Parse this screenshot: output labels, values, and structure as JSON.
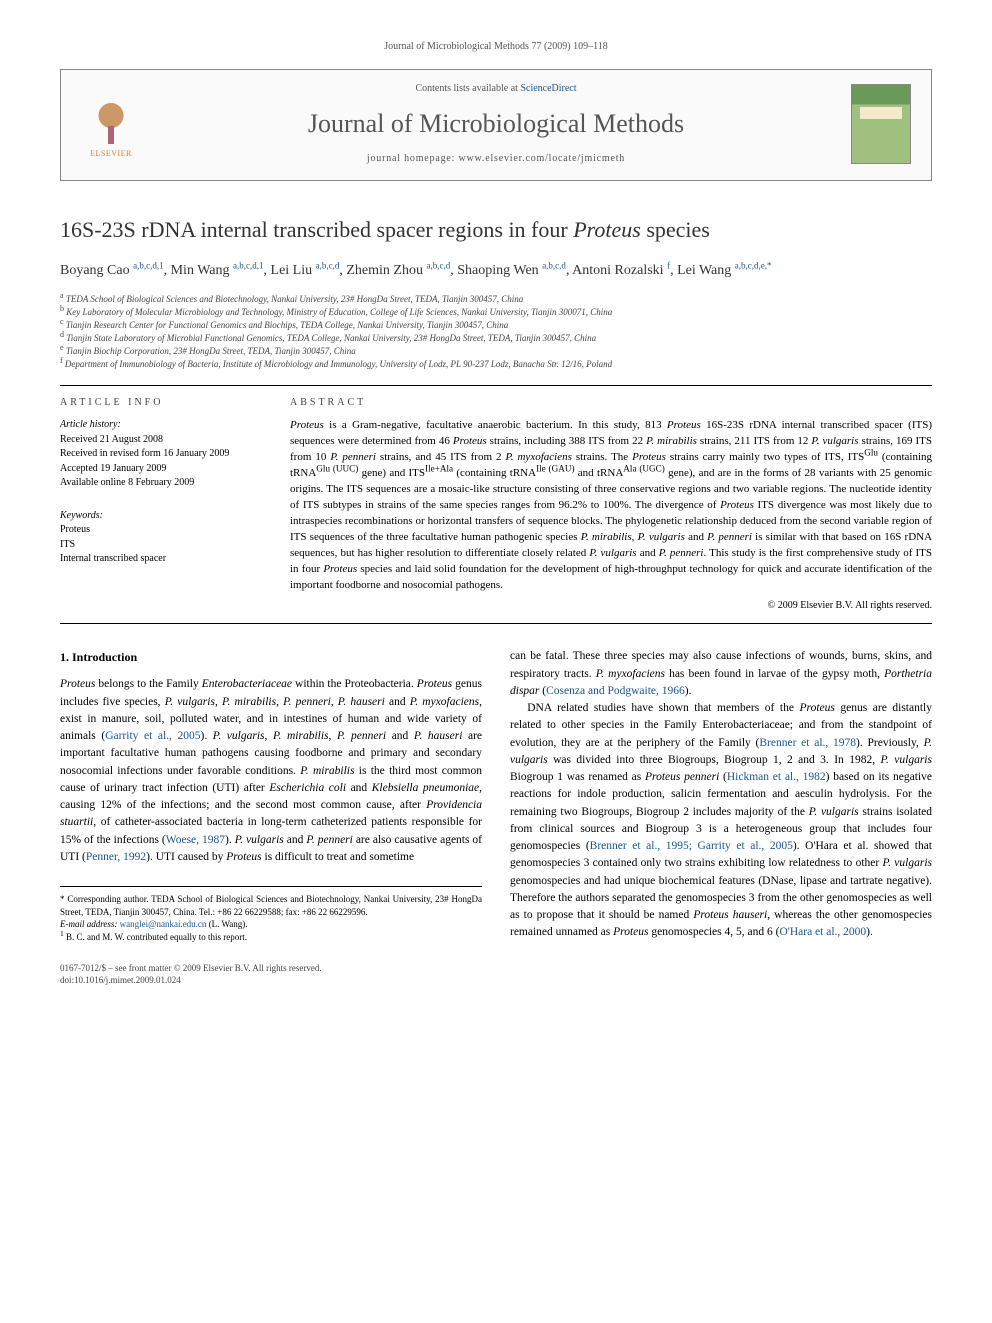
{
  "running_header": "Journal of Microbiological Methods 77 (2009) 109–118",
  "topbox": {
    "contents_prefix": "Contents lists available at ",
    "contents_link": "ScienceDirect",
    "journal_title": "Journal of Microbiological Methods",
    "homepage_prefix": "journal homepage: ",
    "homepage_url": "www.elsevier.com/locate/jmicmeth",
    "publisher_label": "ELSEVIER"
  },
  "article": {
    "title_plain_prefix": "16S-23S rDNA internal transcribed spacer regions in four ",
    "title_ital": "Proteus",
    "title_plain_suffix": " species",
    "authors_html": "Boyang Cao <sup>a,b,c,d,1</sup>, Min Wang <sup>a,b,c,d,1</sup>, Lei Liu <sup>a,b,c,d</sup>, Zhemin Zhou <sup>a,b,c,d</sup>, Shaoping Wen <sup>a,b,c,d</sup>, Antoni Rozalski <sup>f</sup>, Lei Wang <sup>a,b,c,d,e,*</sup>",
    "affiliations": [
      "TEDA School of Biological Sciences and Biotechnology, Nankai University, 23# HongDa Street, TEDA, Tianjin 300457, China",
      "Key Laboratory of Molecular Microbiology and Technology, Ministry of Education, College of Life Sciences, Nankai University, Tianjin 300071, China",
      "Tianjin Research Center for Functional Genomics and Biochips, TEDA College, Nankai University, Tianjin 300457, China",
      "Tianjin State Laboratory of Microbial Functional Genomics, TEDA College, Nankai University, 23# HongDa Street, TEDA, Tianjin 300457, China",
      "Tianjin Biochip Corporation, 23# HongDa Street, TEDA, Tianjin 300457, China",
      "Department of Immunobiology of Bacteria, Institute of Microbiology and Immunology, University of Lodz, PL 90-237 Lodz, Banacha Str. 12/16, Poland"
    ],
    "affiliation_markers": [
      "a",
      "b",
      "c",
      "d",
      "e",
      "f"
    ]
  },
  "article_info": {
    "heading": "ARTICLE INFO",
    "history_label": "Article history:",
    "history": [
      "Received 21 August 2008",
      "Received in revised form 16 January 2009",
      "Accepted 19 January 2009",
      "Available online 8 February 2009"
    ],
    "keywords_label": "Keywords:",
    "keywords": [
      "Proteus",
      "ITS",
      "Internal transcribed spacer"
    ]
  },
  "abstract": {
    "heading": "ABSTRACT",
    "text_html": "<span class=\"ital\">Proteus</span> is a Gram-negative, facultative anaerobic bacterium. In this study, 813 <span class=\"ital\">Proteus</span> 16S-23S rDNA internal transcribed spacer (ITS) sequences were determined from 46 <span class=\"ital\">Proteus</span> strains, including 388 ITS from 22 <span class=\"ital\">P. mirabilis</span> strains, 211 ITS from 12 <span class=\"ital\">P. vulgaris</span> strains, 169 ITS from 10 <span class=\"ital\">P. penneri</span> strains, and 45 ITS from 2 <span class=\"ital\">P. myxofaciens</span> strains. The <span class=\"ital\">Proteus</span> strains carry mainly two types of ITS, ITS<sup>Glu</sup> (containing tRNA<sup>Glu (UUC)</sup> gene) and ITS<sup>Ile+Ala</sup> (containing tRNA<sup>Ile (GAU)</sup> and tRNA<sup>Ala (UGC)</sup> gene), and are in the forms of 28 variants with 25 genomic origins. The ITS sequences are a mosaic-like structure consisting of three conservative regions and two variable regions. The nucleotide identity of ITS subtypes in strains of the same species ranges from 96.2% to 100%. The divergence of <span class=\"ital\">Proteus</span> ITS divergence was most likely due to intraspecies recombinations or horizontal transfers of sequence blocks. The phylogenetic relationship deduced from the second variable region of ITS sequences of the three facultative human pathogenic species <span class=\"ital\">P. mirabilis</span>, <span class=\"ital\">P. vulgaris</span> and <span class=\"ital\">P. penneri</span> is similar with that based on 16S rDNA sequences, but has higher resolution to differentiate closely related <span class=\"ital\">P. vulgaris</span> and <span class=\"ital\">P. penneri</span>. This study is the first comprehensive study of ITS in four <span class=\"ital\">Proteus</span> species and laid solid foundation for the development of high-throughput technology for quick and accurate identification of the important foodborne and nosocomial pathogens.",
    "copyright": "© 2009 Elsevier B.V. All rights reserved."
  },
  "intro": {
    "heading": "1. Introduction",
    "col1_html": "<p><span class=\"ital\">Proteus</span> belongs to the Family <span class=\"ital\">Enterobacteriaceae</span> within the Proteobacteria. <span class=\"ital\">Proteus</span> genus includes five species, <span class=\"ital\">P. vulgaris</span>, <span class=\"ital\">P. mirabilis</span>, <span class=\"ital\">P. penneri</span>, <span class=\"ital\">P. hauseri</span> and <span class=\"ital\">P. myxofaciens</span>, exist in manure, soil, polluted water, and in intestines of human and wide variety of animals (<a class=\"ref\" href=\"#\">Garrity et al., 2005</a>). <span class=\"ital\">P. vulgaris</span>, <span class=\"ital\">P. mirabilis</span>, <span class=\"ital\">P. penneri</span> and <span class=\"ital\">P. hauseri</span> are important facultative human pathogens causing foodborne and primary and secondary nosocomial infections under favorable conditions. <span class=\"ital\">P. mirabilis</span> is the third most common cause of urinary tract infection (UTI) after <span class=\"ital\">Escherichia coli</span> and <span class=\"ital\">Klebsiella pneumoniae</span>, causing 12% of the infections; and the second most common cause, after <span class=\"ital\">Providencia stuartii</span>, of catheter-associated bacteria in long-term catheterized patients responsible for 15% of the infections (<a class=\"ref\" href=\"#\">Woese, 1987</a>). <span class=\"ital\">P. vulgaris</span> and <span class=\"ital\">P. penneri</span> are also causative agents of UTI (<a class=\"ref\" href=\"#\">Penner, 1992</a>). UTI caused by <span class=\"ital\">Proteus</span> is difficult to treat and sometime</p>",
    "col2_html": "<p>can be fatal. These three species may also cause infections of wounds, burns, skins, and respiratory tracts. <span class=\"ital\">P. myxofaciens</span> has been found in larvae of the gypsy moth, <span class=\"ital\">Porthetria dispar</span> (<a class=\"ref\" href=\"#\">Cosenza and Podgwaite, 1966</a>).</p><p>DNA related studies have shown that members of the <span class=\"ital\">Proteus</span> genus are distantly related to other species in the Family Enterobacteriaceae; and from the standpoint of evolution, they are at the periphery of the Family (<a class=\"ref\" href=\"#\">Brenner et al., 1978</a>). Previously, <span class=\"ital\">P. vulgaris</span> was divided into three Biogroups, Biogroup 1, 2 and 3. In 1982, <span class=\"ital\">P. vulgaris</span> Biogroup 1 was renamed as <span class=\"ital\">Proteus penneri</span> (<a class=\"ref\" href=\"#\">Hickman et al., 1982</a>) based on its negative reactions for indole production, salicin fermentation and aesculin hydrolysis. For the remaining two Biogroups, Biogroup 2 includes majority of the <span class=\"ital\">P. vulgaris</span> strains isolated from clinical sources and Biogroup 3 is a heterogeneous group that includes four genomospecies (<a class=\"ref\" href=\"#\">Brenner et al., 1995; Garrity et al., 2005</a>). O'Hara et al. showed that genomospecies 3 contained only two strains exhibiting low relatedness to other <span class=\"ital\">P. vulgaris</span> genomospecies and had unique biochemical features (DNase, lipase and tartrate negative). Therefore the authors separated the genomospecies 3 from the other genomospecies as well as to propose that it should be named <span class=\"ital\">Proteus hauseri</span>, whereas the other genomospecies remained unnamed as <span class=\"ital\">Proteus</span> genomospecies 4, 5, and 6 (<a class=\"ref\" href=\"#\">O'Hara et al., 2000</a>).</p>"
  },
  "footnotes": {
    "corr_html": "* Corresponding author. TEDA School of Biological Sciences and Biotechnology, Nankai University, 23# HongDa Street, TEDA, Tianjin 300457, China. Tel.: +86 22 66229588; fax: +86 22 66229596.",
    "email_label": "E-mail address:",
    "email": "wanglei@nankai.edu.cn",
    "email_who": "(L. Wang).",
    "equal": "B. C. and M. W. contributed equally to this report.",
    "equal_marker": "1"
  },
  "bottom": {
    "line1": "0167-7012/$ – see front matter © 2009 Elsevier B.V. All rights reserved.",
    "line2": "doi:10.1016/j.mimet.2009.01.024"
  },
  "colors": {
    "link": "#1a5690",
    "text": "#000000",
    "muted": "#555555"
  }
}
